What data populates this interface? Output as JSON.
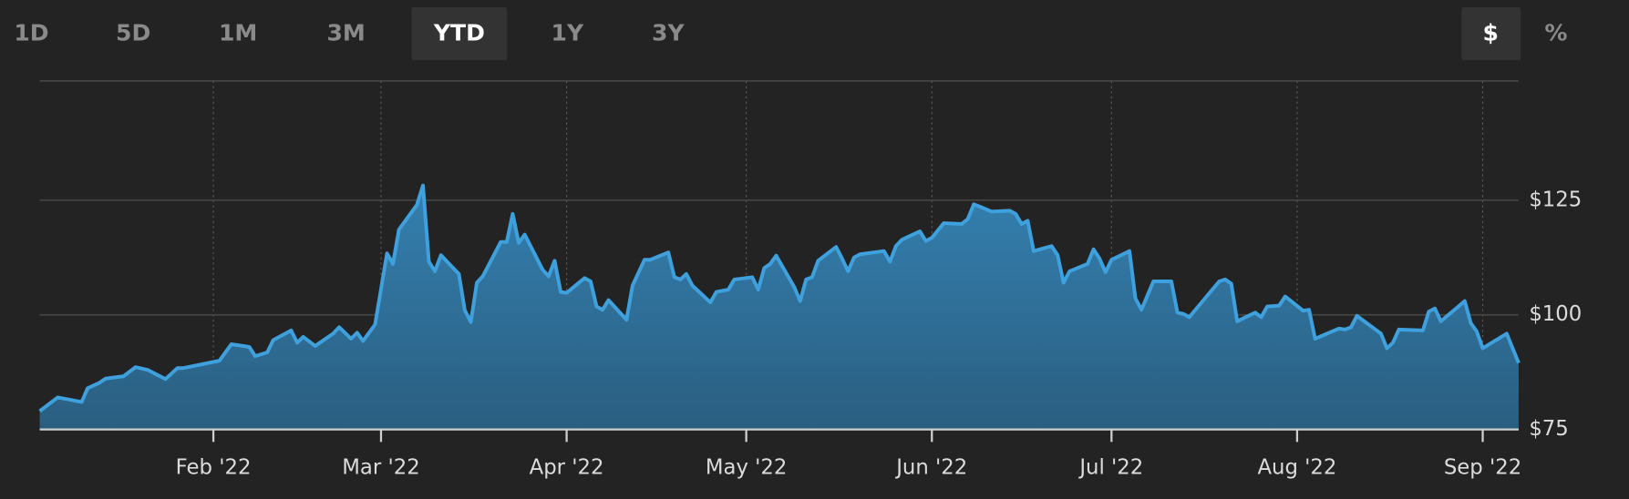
{
  "range_tabs": [
    {
      "label": "1D"
    },
    {
      "label": "5D"
    },
    {
      "label": "1M"
    },
    {
      "label": "3M"
    },
    {
      "label": "YTD",
      "selected": true
    },
    {
      "label": "1Y"
    },
    {
      "label": "3Y"
    }
  ],
  "unit_tabs": [
    {
      "label": "$",
      "selected": true
    },
    {
      "label": "%"
    }
  ],
  "chart_data": {
    "type": "area",
    "color": "#3ea0dc",
    "grid": true,
    "x": [
      3,
      6,
      10,
      11,
      13,
      14,
      17,
      19,
      21,
      24,
      26,
      27,
      33,
      35,
      38,
      39,
      41,
      42,
      45,
      46,
      47,
      49,
      52,
      53,
      55,
      56,
      57,
      59,
      61,
      62,
      63,
      66,
      67,
      68,
      69,
      70,
      73,
      74,
      75,
      76,
      77,
      80,
      81,
      82,
      83,
      84,
      87,
      88,
      89,
      90,
      91,
      94,
      95,
      96,
      97,
      98,
      101,
      102,
      104,
      105,
      108,
      109,
      110,
      111,
      112,
      115,
      116,
      118,
      119,
      122,
      123,
      124,
      125,
      126,
      129,
      130,
      131,
      132,
      133,
      136,
      137,
      138,
      139,
      140,
      144,
      145,
      146,
      147,
      150,
      151,
      152,
      154,
      157,
      158,
      159,
      160,
      162,
      165,
      166,
      167,
      168,
      169,
      172,
      173,
      174,
      175,
      178,
      179,
      180,
      181,
      182,
      185,
      186,
      187,
      189,
      192,
      193,
      194,
      195,
      200,
      201,
      202,
      203,
      206,
      207,
      208,
      210,
      211,
      214,
      215,
      216,
      220,
      221,
      222,
      223,
      227,
      228,
      229,
      230,
      234,
      235,
      236,
      237,
      241,
      242,
      243,
      244,
      248,
      250
    ],
    "values": [
      79,
      82,
      81,
      84,
      85.2,
      86.1,
      86.6,
      88.6,
      88,
      86,
      88.4,
      88.4,
      90,
      93.6,
      93,
      91,
      91.8,
      94.5,
      96.6,
      93.9,
      95.2,
      93.2,
      95.9,
      97.3,
      94.8,
      96.1,
      94.3,
      97.9,
      113.4,
      111.1,
      118.6,
      124,
      128.2,
      111.6,
      109.5,
      113,
      108.9,
      101,
      98.4,
      107,
      108.4,
      115.9,
      115.9,
      122,
      115.7,
      117.5,
      109.8,
      108.4,
      111.8,
      105,
      104.8,
      108,
      107.3,
      101.8,
      101.1,
      103.2,
      98.9,
      106.4,
      112,
      112,
      113.6,
      108.2,
      107.7,
      108.9,
      106.4,
      102.7,
      105,
      105.5,
      107.7,
      108.2,
      105.5,
      110.2,
      111.1,
      112.9,
      106.1,
      103,
      107.7,
      108.2,
      111.8,
      114.8,
      112.3,
      109.5,
      112.5,
      113.2,
      113.9,
      111.6,
      115,
      116.4,
      118.2,
      116.1,
      116.8,
      120,
      119.8,
      120.9,
      124.1,
      123.6,
      122.5,
      122.7,
      122,
      119.8,
      120.5,
      113.9,
      115,
      113,
      107,
      109.5,
      111.1,
      114.3,
      112.3,
      109.3,
      112,
      113.9,
      103.6,
      101.1,
      107.3,
      107.3,
      100.5,
      100.2,
      99.5,
      107.3,
      107.7,
      106.8,
      98.6,
      100.5,
      99.5,
      101.8,
      102,
      104,
      100.9,
      101.1,
      94.8,
      97,
      96.8,
      97.3,
      99.8,
      95.9,
      92.7,
      93.9,
      96.8,
      96.6,
      100.7,
      101.4,
      98.6,
      103,
      98.2,
      96.4,
      92.7,
      95.9,
      89.5
    ],
    "xlim": [
      3,
      250
    ],
    "ylim": [
      75,
      151
    ],
    "xticks": [
      {
        "value": 32,
        "label": "Feb '22"
      },
      {
        "value": 60,
        "label": "Mar '22"
      },
      {
        "value": 91,
        "label": "Apr '22"
      },
      {
        "value": 121,
        "label": "May '22"
      },
      {
        "value": 152,
        "label": "Jun '22"
      },
      {
        "value": 182,
        "label": "Jul '22"
      },
      {
        "value": 213,
        "label": "Aug '22"
      },
      {
        "value": 244,
        "label": "Sep '22"
      }
    ],
    "yticks": [
      {
        "value": 75,
        "label": "$75"
      },
      {
        "value": 100,
        "label": "$100"
      },
      {
        "value": 125,
        "label": "$125"
      }
    ]
  }
}
